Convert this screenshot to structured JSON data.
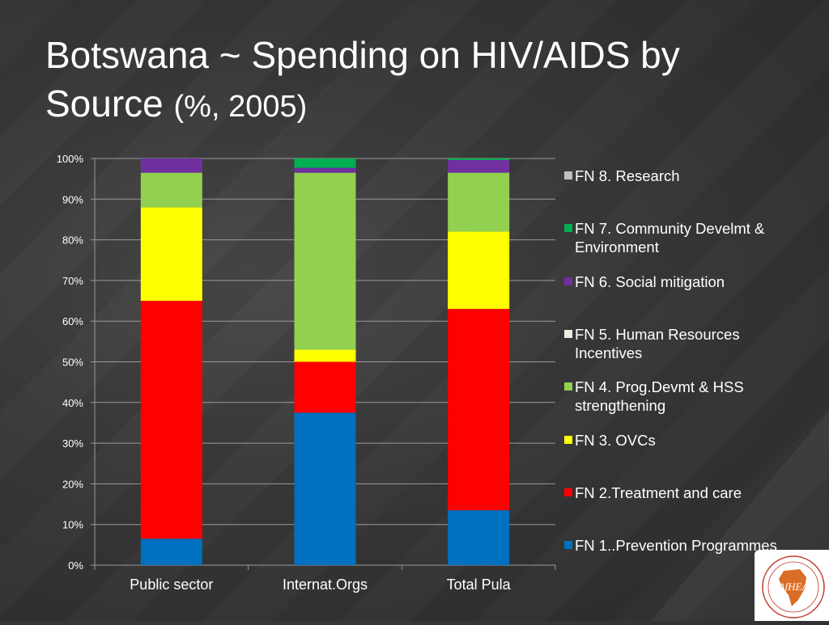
{
  "title": {
    "main": "Botswana ~ Spending on HIV/AIDS by Source",
    "subtitle": "(%, 2005)"
  },
  "chart_data": {
    "type": "bar",
    "stacked": true,
    "categories": [
      "Public sector",
      "Internat.Orgs",
      "Total Pula"
    ],
    "ylim": [
      0,
      100
    ],
    "yticks": [
      "0%",
      "10%",
      "20%",
      "30%",
      "40%",
      "50%",
      "60%",
      "70%",
      "80%",
      "90%",
      "100%"
    ],
    "grid": true,
    "legend_position": "right",
    "series": [
      {
        "name": "FN 1..Prevention Programmes",
        "color": "#0070c0",
        "values": [
          6.5,
          37.5,
          13.5
        ]
      },
      {
        "name": "FN 2.Treatment and care",
        "color": "#ff0000",
        "values": [
          58.5,
          12.5,
          49.5
        ]
      },
      {
        "name": "FN 3. OVCs",
        "color": "#ffff00",
        "values": [
          23,
          3,
          19
        ]
      },
      {
        "name": "FN 4. Prog.Devmt & HSS strengthening",
        "color": "#92d050",
        "values": [
          8.5,
          43.5,
          14.5
        ]
      },
      {
        "name": "FN 5. Human Resources Incentives",
        "color": "#eeece1",
        "values": [
          0,
          0,
          0
        ]
      },
      {
        "name": "FN 6. Social mitigation",
        "color": "#7030a0",
        "values": [
          3.5,
          1.2,
          3.1
        ]
      },
      {
        "name": "FN 7. Community Develmt & Environment",
        "color": "#00b050",
        "values": [
          0,
          2.3,
          0.4
        ]
      },
      {
        "name": "FN 8. Research",
        "color": "#bfbfbf",
        "values": [
          0,
          0,
          0
        ]
      }
    ]
  },
  "logo": {
    "text": "AfHEA"
  }
}
